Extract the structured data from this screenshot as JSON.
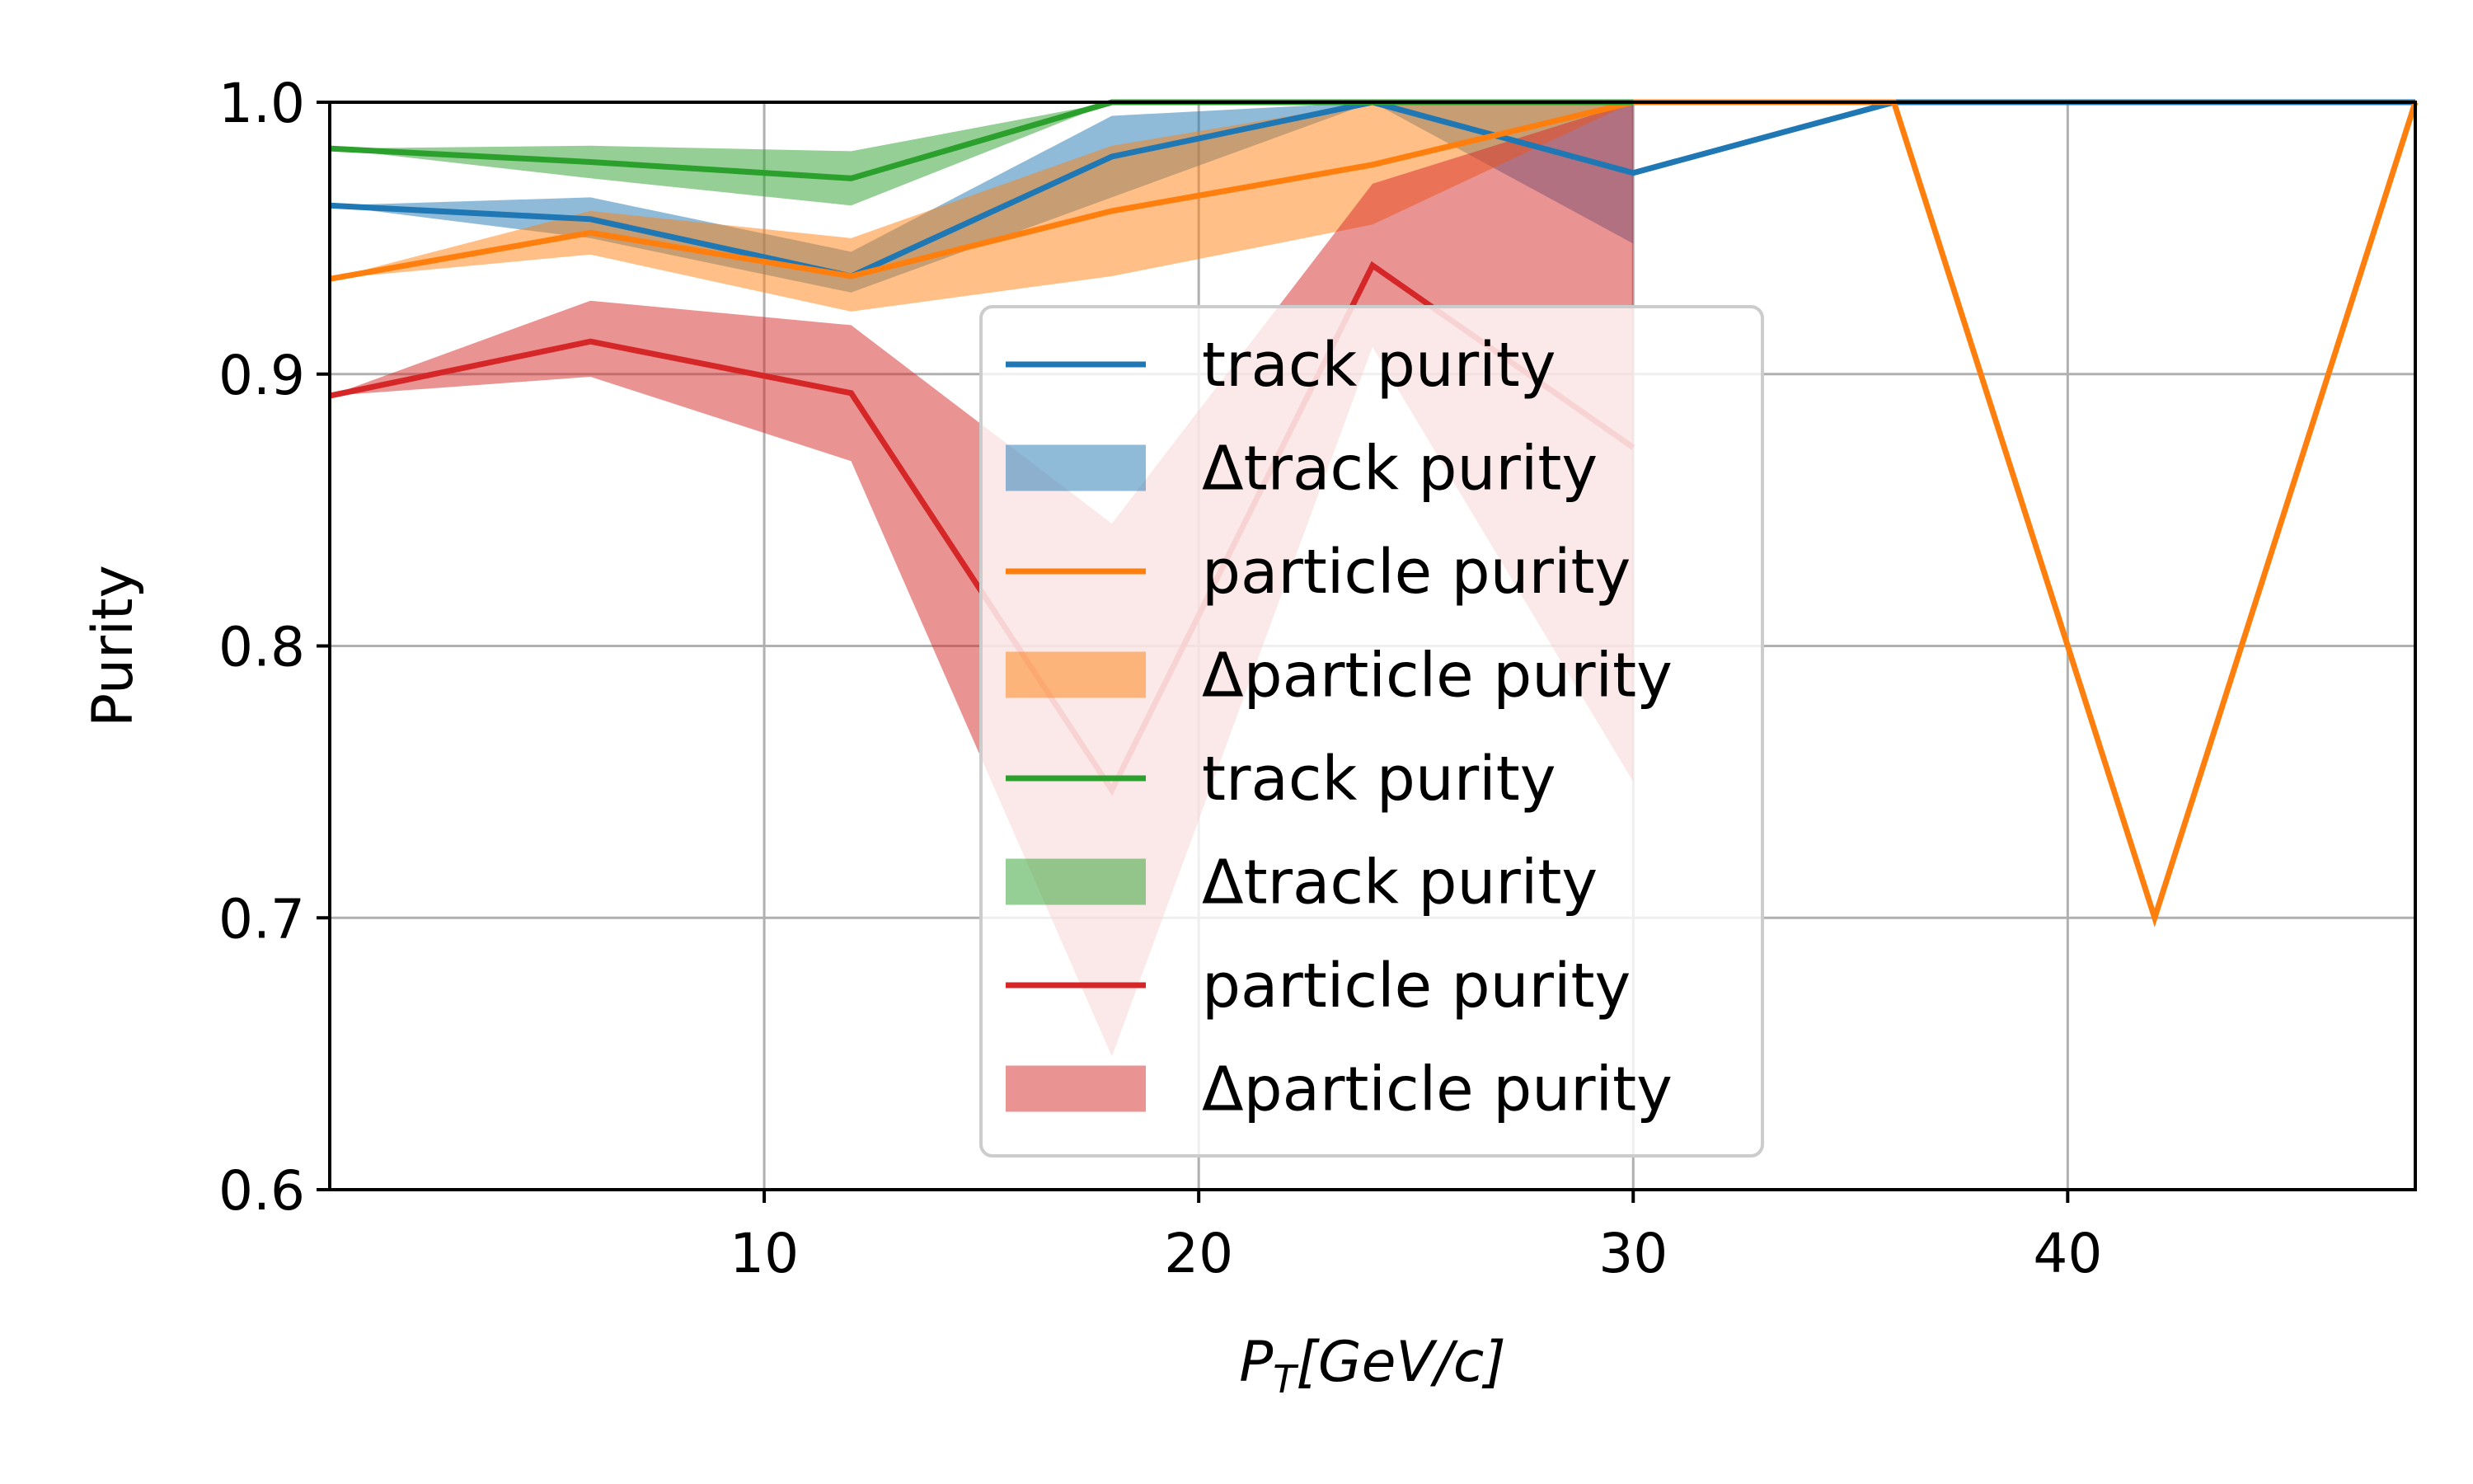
{
  "chart_data": {
    "type": "line",
    "xlabel": "P_T[GeV/c]",
    "xlabel_parts": {
      "main": "P",
      "sub": "T",
      "rest": "[GeV/c]"
    },
    "ylabel": "Purity",
    "xlim": [
      0,
      48
    ],
    "ylim": [
      0.6,
      1.0
    ],
    "xticks": [
      10,
      20,
      30,
      40
    ],
    "xtick_labels": [
      "10",
      "20",
      "30",
      "40"
    ],
    "yticks": [
      0.6,
      0.7,
      0.8,
      0.9,
      1.0
    ],
    "ytick_labels": [
      "0.6",
      "0.7",
      "0.8",
      "0.9",
      "1.0"
    ],
    "grid": true,
    "legend_position": "center",
    "series": [
      {
        "name": "track purity",
        "band_name": "Δtrack purity",
        "color": "#1f77b4",
        "x": [
          0,
          6,
          12,
          18,
          24,
          30,
          36,
          42,
          48
        ],
        "y": [
          0.962,
          0.957,
          0.936,
          0.98,
          1.0,
          0.974,
          1.0,
          1.0,
          1.0
        ],
        "band_x": [
          0,
          6,
          12,
          18,
          24,
          30
        ],
        "band_low": [
          0.962,
          0.95,
          0.93,
          0.965,
          1.0,
          0.948
        ],
        "band_high": [
          0.962,
          0.965,
          0.945,
          0.995,
          1.0,
          1.0
        ]
      },
      {
        "name": "particle purity",
        "band_name": "Δparticle purity",
        "color": "#ff7f0e",
        "x": [
          0,
          6,
          12,
          18,
          24,
          30,
          36,
          42,
          48
        ],
        "y": [
          0.935,
          0.952,
          0.936,
          0.96,
          0.977,
          1.0,
          1.0,
          0.7,
          1.0
        ],
        "band_x": [
          0,
          6,
          12,
          18,
          24,
          30
        ],
        "band_low": [
          0.935,
          0.944,
          0.923,
          0.936,
          0.955,
          1.0
        ],
        "band_high": [
          0.935,
          0.96,
          0.95,
          0.984,
          1.0,
          1.0
        ]
      },
      {
        "name": "track purity",
        "band_name": "Δtrack purity",
        "color": "#2ca02c",
        "x": [
          0,
          6,
          12,
          18,
          24,
          30
        ],
        "y": [
          0.983,
          0.978,
          0.972,
          1.0,
          1.0,
          1.0
        ],
        "band_x": [
          0,
          6,
          12,
          18,
          24,
          30
        ],
        "band_low": [
          0.983,
          0.972,
          0.962,
          1.0,
          1.0,
          1.0
        ],
        "band_high": [
          0.983,
          0.984,
          0.982,
          1.0,
          1.0,
          1.0
        ]
      },
      {
        "name": "particle purity",
        "band_name": "Δparticle purity",
        "color": "#d62728",
        "x": [
          0,
          6,
          12,
          18,
          24,
          30
        ],
        "y": [
          0.892,
          0.912,
          0.893,
          0.747,
          0.94,
          0.873
        ],
        "band_x": [
          0,
          6,
          12,
          18,
          24,
          30
        ],
        "band_low": [
          0.892,
          0.899,
          0.868,
          0.649,
          0.91,
          0.75
        ],
        "band_high": [
          0.892,
          0.927,
          0.918,
          0.845,
          0.97,
          1.0
        ]
      }
    ]
  }
}
